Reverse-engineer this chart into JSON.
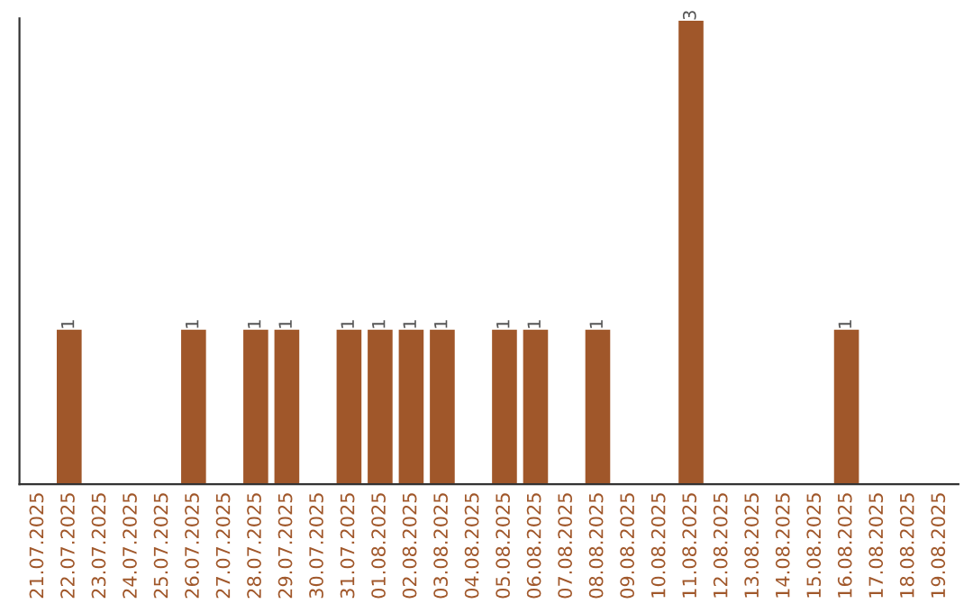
{
  "chart_data": {
    "type": "bar",
    "categories": [
      "21.07.2025",
      "22.07.2025",
      "23.07.2025",
      "24.07.2025",
      "25.07.2025",
      "26.07.2025",
      "27.07.2025",
      "28.07.2025",
      "29.07.2025",
      "30.07.2025",
      "31.07.2025",
      "01.08.2025",
      "02.08.2025",
      "03.08.2025",
      "04.08.2025",
      "05.08.2025",
      "06.08.2025",
      "07.08.2025",
      "08.08.2025",
      "09.08.2025",
      "10.08.2025",
      "11.08.2025",
      "12.08.2025",
      "13.08.2025",
      "14.08.2025",
      "15.08.2025",
      "16.08.2025",
      "17.08.2025",
      "18.08.2025",
      "19.08.2025"
    ],
    "values": [
      0,
      1,
      0,
      0,
      0,
      1,
      0,
      1,
      1,
      0,
      1,
      1,
      1,
      1,
      0,
      1,
      1,
      0,
      1,
      0,
      0,
      3,
      0,
      0,
      0,
      0,
      1,
      0,
      0,
      0
    ],
    "value_labels": [
      null,
      "1",
      null,
      null,
      null,
      "1",
      null,
      "1",
      "1",
      null,
      "1",
      "1",
      "1",
      "1",
      null,
      "1",
      "1",
      null,
      "1",
      null,
      null,
      "3",
      null,
      null,
      null,
      null,
      "1",
      null,
      null,
      null
    ],
    "color": "#a0572a",
    "tick_labels": "x",
    "grid": false,
    "legend": false
  }
}
